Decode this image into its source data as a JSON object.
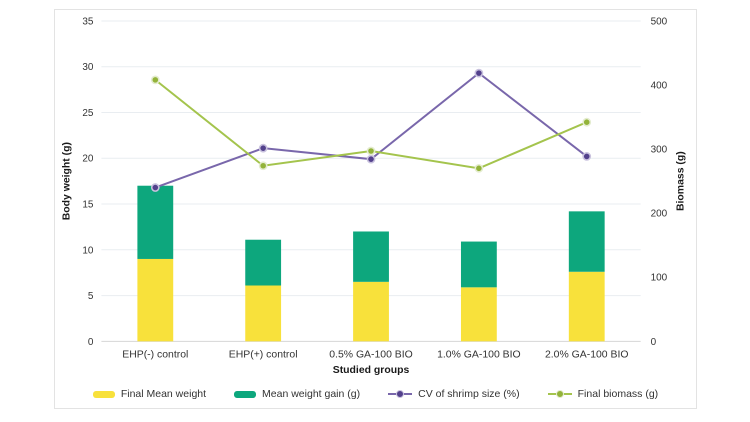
{
  "chart_data": {
    "type": "combo-stacked-bar-line",
    "categories": [
      "EHP(-) control",
      "EHP(+) control",
      "0.5% GA-100 BIO",
      "1.0% GA-100 BIO",
      "2.0% GA-100 BIO"
    ],
    "series": [
      {
        "name": "Final Mean weight",
        "type": "bar",
        "stack": "weight",
        "axis": "left",
        "color": "#F8E13B",
        "values": [
          9.0,
          6.1,
          6.5,
          5.9,
          7.6
        ]
      },
      {
        "name": "Mean weight gain (g)",
        "type": "bar",
        "stack": "weight",
        "axis": "left",
        "color": "#0DA77D",
        "values": [
          8.0,
          5.0,
          5.5,
          5.0,
          6.6
        ]
      },
      {
        "name": "CV of shrimp size (%)",
        "type": "line",
        "axis": "left",
        "color": "#7967AB",
        "marker_color": "#53418C",
        "marker_ring": "#C9C2DE",
        "values": [
          16.8,
          21.1,
          19.9,
          29.3,
          20.2
        ]
      },
      {
        "name": "Final biomass (g)",
        "type": "line",
        "axis": "right",
        "color": "#A4C44D",
        "marker_color": "#93B33A",
        "marker_ring": "#E4ECCF",
        "values": [
          408,
          274,
          297,
          270,
          342
        ]
      }
    ],
    "left_axis": {
      "label": "Body weight (g)",
      "min": 0,
      "max": 35,
      "step": 5
    },
    "right_axis": {
      "label": "Biomass (g)",
      "min": 0,
      "max": 500,
      "step": 100
    },
    "xlabel": "Studied groups",
    "grid": "horizontal",
    "legend_position": "bottom",
    "colors": {
      "gridline": "#E9EDF1",
      "baseline": "#D6D6D6",
      "tick_text": "#333333",
      "axis_title_text": "#1a1a1a"
    }
  }
}
